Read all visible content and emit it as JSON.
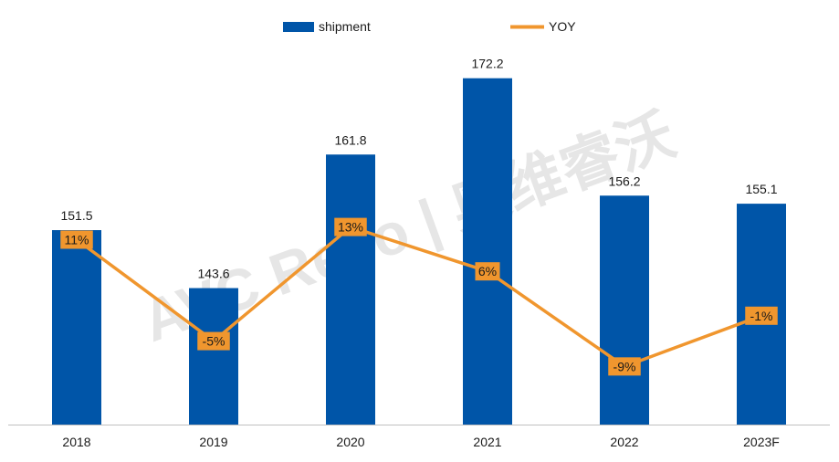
{
  "watermark": "AVC Revo | 奥维睿沃",
  "colors": {
    "bar": "#0055A8",
    "line": "#F0962E",
    "label_box": "#F0962E",
    "axis": "#BFBFBF",
    "text": "#1A1A1A",
    "watermark": "#E6E6E6"
  },
  "chart_data": {
    "type": "bar",
    "categories": [
      "2018",
      "2019",
      "2020",
      "2021",
      "2022",
      "2023F"
    ],
    "series": [
      {
        "name": "shipment",
        "type": "bar",
        "values": [
          151.5,
          143.6,
          161.8,
          172.2,
          156.2,
          155.1
        ],
        "labels": [
          "151.5",
          "143.6",
          "161.8",
          "172.2",
          "156.2",
          "155.1"
        ]
      },
      {
        "name": "YOY",
        "type": "line",
        "values": [
          11,
          -5,
          13,
          6,
          -9,
          -1
        ],
        "labels": [
          "11%",
          "-5%",
          "13%",
          "6%",
          "-9%",
          "-1%"
        ]
      }
    ],
    "legend": [
      "shipment",
      "YOY"
    ],
    "legend_position": "top",
    "grid": false,
    "ylim_left": [
      125,
      180
    ],
    "ylim_right": [
      -15,
      20
    ]
  }
}
